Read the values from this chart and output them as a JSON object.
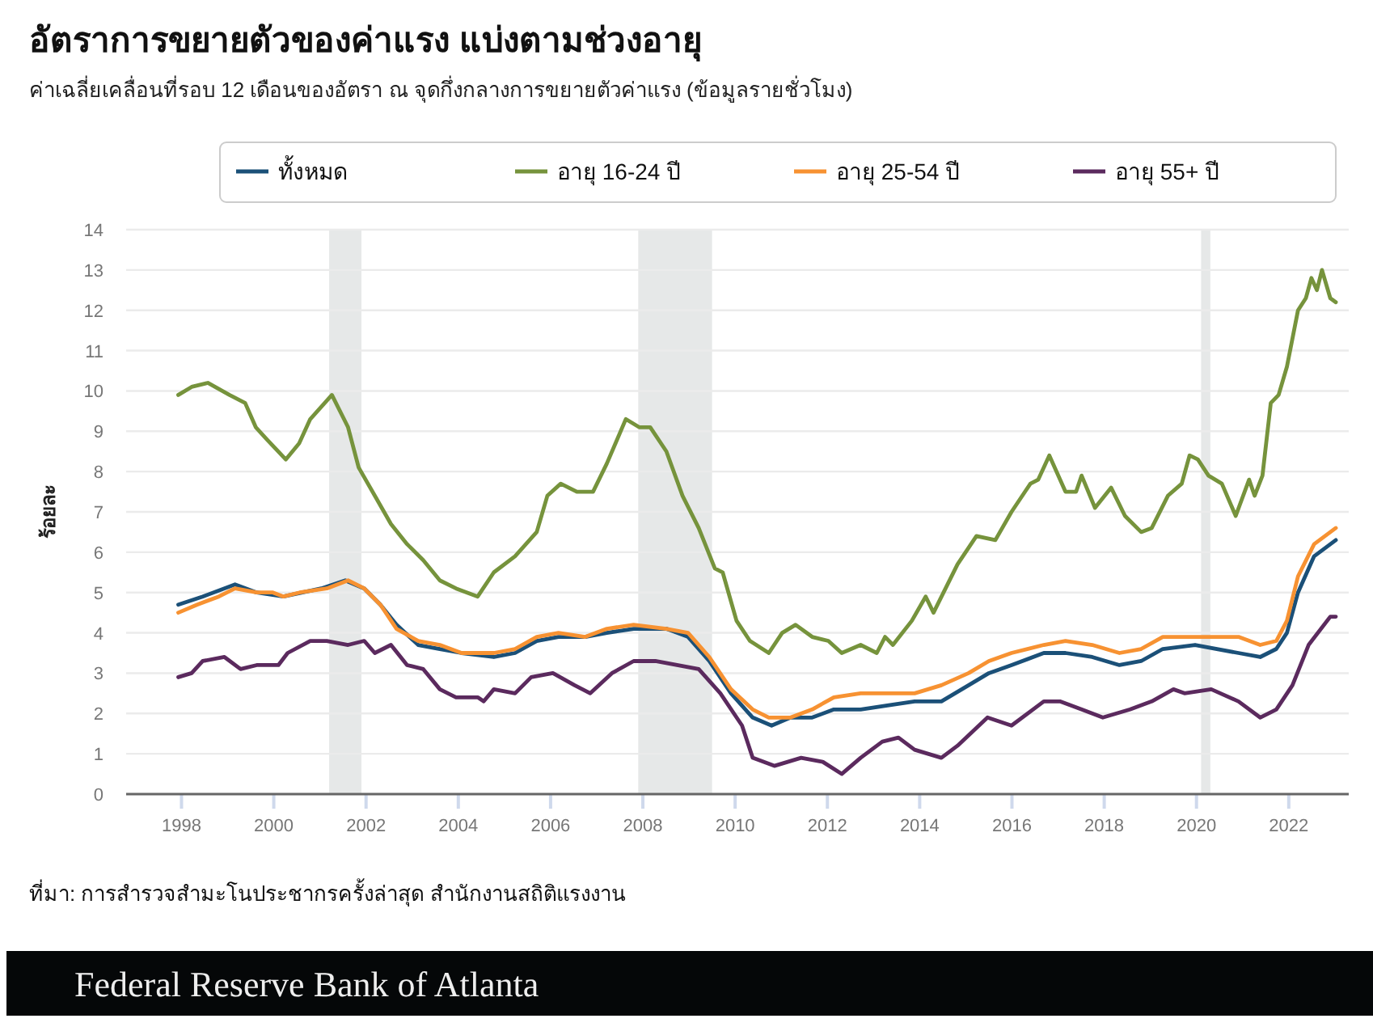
{
  "chart_data": {
    "type": "line",
    "title": "อัตราการขยายตัวของค่าแรง แบ่งตามช่วงอายุ",
    "subtitle": "ค่าเฉลี่ยเคลื่อนที่รอบ 12 เดือนของอัตรา ณ จุดกึ่งกลางการขยายตัวค่าแรง (ข้อมูลรายชั่วโมง)",
    "ylabel": "ร้อยละ",
    "xlim": [
      1996.8,
      2023.3
    ],
    "xticks": [
      1998,
      2000,
      2002,
      2004,
      2006,
      2008,
      2010,
      2012,
      2014,
      2016,
      2018,
      2020,
      2022
    ],
    "ylim": [
      0,
      14
    ],
    "yticks": [
      0,
      1,
      2,
      3,
      4,
      5,
      6,
      7,
      8,
      9,
      10,
      11,
      12,
      13,
      14
    ],
    "grid": "y",
    "legend": "top",
    "line_style": "solid",
    "marker": "none",
    "bands": [
      {
        "axis": "x",
        "from": 2001.2,
        "to": 2001.9,
        "color": "#e6e8e8"
      },
      {
        "axis": "x",
        "from": 2007.9,
        "to": 2009.5,
        "color": "#e6e8e8"
      },
      {
        "axis": "x",
        "from": 2020.1,
        "to": 2020.3,
        "color": "#e6e8e8"
      }
    ],
    "series": [
      {
        "name": "ทั้งหมด",
        "color": "#1b5078",
        "x": [
          1997.93,
          1998.46,
          1999.16,
          1999.63,
          2000.21,
          2001.03,
          2001.55,
          2001.96,
          2002.31,
          2002.66,
          2003.13,
          2003.6,
          2004.07,
          2004.77,
          2005.23,
          2005.7,
          2006.17,
          2006.75,
          2007.22,
          2007.8,
          2008.51,
          2008.98,
          2009.44,
          2009.91,
          2010.38,
          2010.79,
          2011.2,
          2011.67,
          2012.14,
          2012.72,
          2013.3,
          2013.89,
          2014.47,
          2015.06,
          2015.5,
          2015.99,
          2016.69,
          2017.16,
          2017.74,
          2018.33,
          2018.8,
          2019.27,
          2019.97,
          2020.91,
          2021.38,
          2021.73,
          2021.96,
          2022.2,
          2022.55,
          2023.02
        ],
        "values": [
          4.7,
          4.9,
          5.2,
          5.0,
          4.9,
          5.1,
          5.3,
          5.1,
          4.7,
          4.2,
          3.7,
          3.6,
          3.5,
          3.4,
          3.5,
          3.8,
          3.9,
          3.9,
          4.0,
          4.1,
          4.1,
          3.9,
          3.3,
          2.5,
          1.9,
          1.7,
          1.9,
          1.9,
          2.1,
          2.1,
          2.2,
          2.3,
          2.3,
          2.7,
          3.0,
          3.2,
          3.5,
          3.5,
          3.4,
          3.2,
          3.3,
          3.6,
          3.7,
          3.5,
          3.4,
          3.6,
          4.0,
          5.0,
          5.9,
          6.3
        ]
      },
      {
        "name": "อายุ 16-24 ปี",
        "color": "#76933c",
        "x": [
          1997.93,
          1998.22,
          1998.57,
          1999.04,
          1999.38,
          1999.61,
          1999.85,
          2000.26,
          2000.55,
          2000.79,
          2001.26,
          2001.61,
          2001.84,
          2002.19,
          2002.54,
          2002.89,
          2003.24,
          2003.6,
          2003.95,
          2004.42,
          2004.77,
          2005.23,
          2005.7,
          2005.93,
          2006.22,
          2006.57,
          2006.92,
          2007.22,
          2007.63,
          2007.92,
          2008.16,
          2008.51,
          2008.86,
          2009.21,
          2009.56,
          2009.73,
          2010.03,
          2010.32,
          2010.73,
          2011.02,
          2011.31,
          2011.67,
          2012.02,
          2012.31,
          2012.72,
          2013.07,
          2013.25,
          2013.42,
          2013.83,
          2014.13,
          2014.3,
          2014.82,
          2015.23,
          2015.64,
          2015.99,
          2016.4,
          2016.57,
          2016.81,
          2017.16,
          2017.39,
          2017.51,
          2017.8,
          2018.15,
          2018.45,
          2018.8,
          2019.03,
          2019.38,
          2019.68,
          2019.85,
          2020.03,
          2020.26,
          2020.55,
          2020.85,
          2021.14,
          2021.26,
          2021.43,
          2021.61,
          2021.78,
          2021.96,
          2022.2,
          2022.37,
          2022.49,
          2022.61,
          2022.72,
          2022.9,
          2023.02
        ],
        "values": [
          9.9,
          10.1,
          10.2,
          9.9,
          9.7,
          9.1,
          8.8,
          8.3,
          8.7,
          9.3,
          9.9,
          9.1,
          8.1,
          7.4,
          6.7,
          6.2,
          5.8,
          5.3,
          5.1,
          4.9,
          5.5,
          5.9,
          6.5,
          7.4,
          7.7,
          7.5,
          7.5,
          8.2,
          9.3,
          9.1,
          9.1,
          8.5,
          7.4,
          6.6,
          5.6,
          5.5,
          4.3,
          3.8,
          3.5,
          4.0,
          4.2,
          3.9,
          3.8,
          3.5,
          3.7,
          3.5,
          3.9,
          3.7,
          4.3,
          4.9,
          4.5,
          5.7,
          6.4,
          6.3,
          7.0,
          7.7,
          7.8,
          8.4,
          7.5,
          7.5,
          7.9,
          7.1,
          7.6,
          6.9,
          6.5,
          6.6,
          7.4,
          7.7,
          8.4,
          8.3,
          7.9,
          7.7,
          6.9,
          7.8,
          7.4,
          7.9,
          9.7,
          9.9,
          10.6,
          12.0,
          12.3,
          12.8,
          12.5,
          13.0,
          12.3,
          12.2
        ]
      },
      {
        "name": "อายุ 25-54 ปี",
        "color": "#f79232",
        "x": [
          1997.93,
          1998.34,
          1998.81,
          1999.16,
          1999.63,
          1999.98,
          2000.21,
          2000.56,
          2001.15,
          2001.61,
          2001.96,
          2002.31,
          2002.66,
          2003.13,
          2003.6,
          2004.07,
          2004.77,
          2005.23,
          2005.7,
          2006.17,
          2006.75,
          2007.22,
          2007.8,
          2008.51,
          2008.98,
          2009.44,
          2009.91,
          2010.38,
          2010.73,
          2011.2,
          2011.67,
          2012.14,
          2012.72,
          2013.3,
          2013.89,
          2014.47,
          2015.06,
          2015.5,
          2015.99,
          2016.69,
          2017.16,
          2017.74,
          2018.33,
          2018.8,
          2019.27,
          2019.97,
          2020.91,
          2021.38,
          2021.73,
          2021.96,
          2022.2,
          2022.55,
          2023.02
        ],
        "values": [
          4.5,
          4.7,
          4.9,
          5.1,
          5.0,
          5.0,
          4.9,
          5.0,
          5.1,
          5.3,
          5.1,
          4.7,
          4.1,
          3.8,
          3.7,
          3.5,
          3.5,
          3.6,
          3.9,
          4.0,
          3.9,
          4.1,
          4.2,
          4.1,
          4.0,
          3.4,
          2.6,
          2.1,
          1.9,
          1.9,
          2.1,
          2.4,
          2.5,
          2.5,
          2.5,
          2.7,
          3.0,
          3.3,
          3.5,
          3.7,
          3.8,
          3.7,
          3.5,
          3.6,
          3.9,
          3.9,
          3.9,
          3.7,
          3.8,
          4.3,
          5.4,
          6.2,
          6.6
        ]
      },
      {
        "name": "อายุ 55+ ปี",
        "color": "#5b2a5e",
        "x": [
          1997.93,
          1998.22,
          1998.46,
          1998.93,
          1999.28,
          1999.63,
          2000.1,
          2000.3,
          2000.79,
          2001.15,
          2001.61,
          2001.96,
          2002.19,
          2002.54,
          2002.89,
          2003.24,
          2003.6,
          2003.95,
          2004.42,
          2004.55,
          2004.77,
          2005.23,
          2005.58,
          2006.05,
          2006.52,
          2006.86,
          2007.33,
          2007.8,
          2008.27,
          2008.74,
          2009.21,
          2009.68,
          2010.15,
          2010.38,
          2010.85,
          2011.43,
          2011.9,
          2012.31,
          2012.72,
          2013.19,
          2013.54,
          2013.89,
          2014.47,
          2014.82,
          2015.47,
          2015.99,
          2016.69,
          2017.04,
          2017.51,
          2017.97,
          2018.56,
          2019.03,
          2019.5,
          2019.74,
          2020.32,
          2020.91,
          2021.38,
          2021.73,
          2022.08,
          2022.43,
          2022.9,
          2023.02
        ],
        "values": [
          2.9,
          3.0,
          3.3,
          3.4,
          3.1,
          3.2,
          3.2,
          3.5,
          3.8,
          3.8,
          3.7,
          3.8,
          3.5,
          3.7,
          3.2,
          3.1,
          2.6,
          2.4,
          2.4,
          2.3,
          2.6,
          2.5,
          2.9,
          3.0,
          2.7,
          2.5,
          3.0,
          3.3,
          3.3,
          3.2,
          3.1,
          2.5,
          1.7,
          0.9,
          0.7,
          0.9,
          0.8,
          0.5,
          0.9,
          1.3,
          1.4,
          1.1,
          0.9,
          1.2,
          1.9,
          1.7,
          2.3,
          2.3,
          2.1,
          1.9,
          2.1,
          2.3,
          2.6,
          2.5,
          2.6,
          2.3,
          1.9,
          2.1,
          2.7,
          3.7,
          4.4,
          4.4
        ]
      }
    ],
    "annotations": [
      "ที่มา: การสำรวจสำมะโนประชากรครั้งล่าสุด สำนักงานสถิติแรงงาน",
      "Federal Reserve Bank of Atlanta"
    ]
  }
}
